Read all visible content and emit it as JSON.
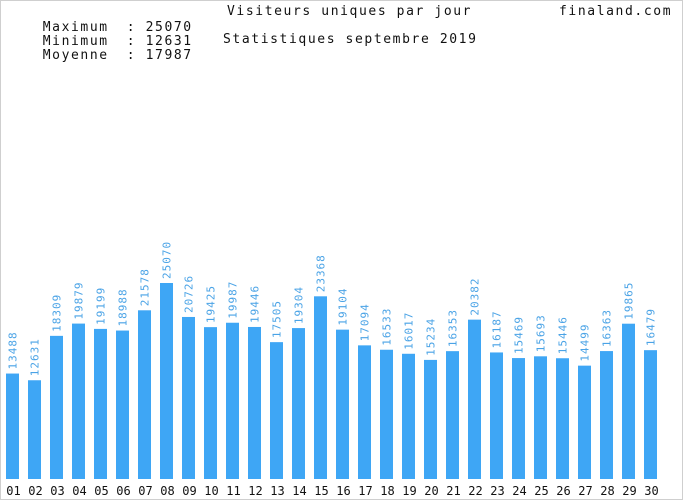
{
  "header": {
    "max_label": "Maximum",
    "max_value": "25070",
    "min_label": "Minimum",
    "min_value": "12631",
    "avg_label": "Moyenne",
    "avg_value": "17987",
    "separator": ":",
    "site": "finaland.com"
  },
  "colors": {
    "bar": "#3ea6f5",
    "label": "#4aa3e6",
    "axis_text": "#111111"
  },
  "chart_data": {
    "type": "bar",
    "title": "Visiteurs uniques par jour",
    "subtitle": "Statistiques septembre 2019",
    "xlabel": "",
    "ylabel": "",
    "ylim": [
      0,
      30000
    ],
    "grid": false,
    "categories": [
      "01",
      "02",
      "03",
      "04",
      "05",
      "06",
      "07",
      "08",
      "09",
      "10",
      "11",
      "12",
      "13",
      "14",
      "15",
      "16",
      "17",
      "18",
      "19",
      "20",
      "21",
      "22",
      "23",
      "24",
      "25",
      "26",
      "27",
      "28",
      "29",
      "30"
    ],
    "values": [
      13488,
      12631,
      18309,
      19879,
      19199,
      18988,
      21578,
      25070,
      20726,
      19425,
      19987,
      19446,
      17505,
      19304,
      23368,
      19104,
      17094,
      16533,
      16017,
      15234,
      16353,
      20382,
      16187,
      15469,
      15693,
      15446,
      14499,
      16363,
      19865,
      16479
    ]
  }
}
